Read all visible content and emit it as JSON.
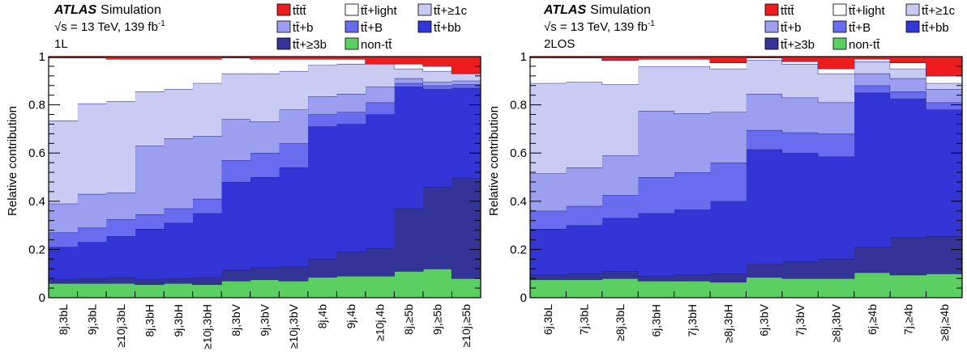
{
  "colors": {
    "tttt": "#ee1c1c",
    "ttlight": "#ffffff",
    "tt1c": "#cacbf2",
    "ttb": "#9c9ef0",
    "ttB": "#6a6cf0",
    "ttbb": "#3435d6",
    "tt3b": "#343398",
    "nontt": "#5ccf62",
    "outline": "#1a1a80"
  },
  "legend": [
    {
      "key": "tttt",
      "label": "tt̄tt̄"
    },
    {
      "key": "ttlight",
      "label": "tt̄+light"
    },
    {
      "key": "tt1c",
      "label": "tt̄+≥1c"
    },
    {
      "key": "ttb",
      "label": "tt̄+b"
    },
    {
      "key": "ttB",
      "label": "tt̄+B"
    },
    {
      "key": "ttbb",
      "label": "tt̄+bb"
    },
    {
      "key": "tt3b",
      "label": "tt̄+≥3b"
    },
    {
      "key": "nontt",
      "label": "non-tt̄"
    }
  ],
  "chart_data": [
    {
      "type": "bar",
      "stacked": true,
      "atlas_label": "ATLAS",
      "atlas_sub": "Simulation",
      "energy_label": "√s = 13 TeV, 139 fb",
      "energy_sup": "-1",
      "channel": "1L",
      "ylabel": "Relative contribution",
      "ylim": [
        0,
        1
      ],
      "yticks": [
        "0",
        "0.2",
        "0.4",
        "0.6",
        "0.8",
        "1"
      ],
      "categories": [
        "8j,3bL",
        "9j,3bL",
        "≥10j,3bL",
        "8j,3bH",
        "9j,3bH",
        "≥10j,3bH",
        "8j,3bV",
        "9j,3bV",
        "≥10j,3bV",
        "8j,4b",
        "9j,4b",
        "≥10j,4b",
        "8j,≥5b",
        "9j,≥5b",
        "≥10j,≥5b"
      ],
      "series": [
        {
          "key": "nontt",
          "name": "non-tt̄",
          "values": [
            0.06,
            0.06,
            0.06,
            0.055,
            0.06,
            0.055,
            0.07,
            0.075,
            0.07,
            0.085,
            0.09,
            0.09,
            0.11,
            0.12,
            0.08
          ]
        },
        {
          "key": "tt3b",
          "name": "tt̄+≥3b",
          "values": [
            0.015,
            0.02,
            0.025,
            0.02,
            0.02,
            0.03,
            0.045,
            0.05,
            0.06,
            0.075,
            0.1,
            0.115,
            0.26,
            0.34,
            0.415
          ]
        },
        {
          "key": "ttbb",
          "name": "tt̄+bb",
          "values": [
            0.135,
            0.15,
            0.17,
            0.21,
            0.23,
            0.265,
            0.365,
            0.375,
            0.41,
            0.55,
            0.53,
            0.555,
            0.505,
            0.405,
            0.375
          ]
        },
        {
          "key": "ttB",
          "name": "tt̄+B",
          "values": [
            0.06,
            0.06,
            0.07,
            0.06,
            0.06,
            0.06,
            0.09,
            0.1,
            0.1,
            0.05,
            0.05,
            0.05,
            0.015,
            0.015,
            0.015
          ]
        },
        {
          "key": "ttb",
          "name": "tt̄+b",
          "values": [
            0.12,
            0.14,
            0.11,
            0.285,
            0.29,
            0.26,
            0.17,
            0.13,
            0.14,
            0.075,
            0.075,
            0.065,
            0.02,
            0.015,
            0.015
          ]
        },
        {
          "key": "tt1c",
          "name": "tt̄+≥1c",
          "values": [
            0.345,
            0.375,
            0.38,
            0.225,
            0.205,
            0.22,
            0.19,
            0.2,
            0.16,
            0.13,
            0.125,
            0.095,
            0.04,
            0.045,
            0.03
          ]
        },
        {
          "key": "ttlight",
          "name": "tt̄+light",
          "values": [
            0.26,
            0.19,
            0.175,
            0.135,
            0.125,
            0.1,
            0.065,
            0.06,
            0.05,
            0.025,
            0.02,
            0.0,
            0.02,
            0.02,
            0.0
          ]
        },
        {
          "key": "tttt",
          "name": "tt̄tt̄",
          "values": [
            0.005,
            0.005,
            0.01,
            0.01,
            0.01,
            0.01,
            0.005,
            0.01,
            0.01,
            0.01,
            0.01,
            0.03,
            0.03,
            0.04,
            0.07
          ]
        }
      ]
    },
    {
      "type": "bar",
      "stacked": true,
      "atlas_label": "ATLAS",
      "atlas_sub": "Simulation",
      "energy_label": "√s = 13 TeV, 139 fb",
      "energy_sup": "-1",
      "channel": "2LOS",
      "ylabel": "Relative contribution",
      "ylim": [
        0,
        1
      ],
      "yticks": [
        "0",
        "0.2",
        "0.4",
        "0.6",
        "0.8",
        "1"
      ],
      "categories": [
        "6j,3bL",
        "7j,3bL",
        "≥8j,3bL",
        "6j,3bH",
        "7j,3bH",
        "≥8j,3bH",
        "6j,3bV",
        "7j,3bV",
        "≥8j,3bV",
        "6j,≥4b",
        "7j,≥4b",
        "≥8j,≥4b"
      ],
      "series": [
        {
          "key": "nontt",
          "name": "non-tt̄",
          "values": [
            0.075,
            0.075,
            0.08,
            0.07,
            0.07,
            0.065,
            0.085,
            0.08,
            0.08,
            0.105,
            0.095,
            0.1
          ]
        },
        {
          "key": "tt3b",
          "name": "tt̄+≥3b",
          "values": [
            0.02,
            0.025,
            0.03,
            0.02,
            0.025,
            0.035,
            0.055,
            0.07,
            0.08,
            0.105,
            0.155,
            0.155
          ]
        },
        {
          "key": "ttbb",
          "name": "tt̄+bb",
          "values": [
            0.19,
            0.2,
            0.22,
            0.26,
            0.27,
            0.3,
            0.475,
            0.45,
            0.425,
            0.64,
            0.575,
            0.525
          ]
        },
        {
          "key": "ttB",
          "name": "tt̄+B",
          "values": [
            0.075,
            0.08,
            0.095,
            0.15,
            0.155,
            0.16,
            0.08,
            0.085,
            0.095,
            0.03,
            0.03,
            0.03
          ]
        },
        {
          "key": "ttb",
          "name": "tt̄+b",
          "values": [
            0.155,
            0.16,
            0.165,
            0.275,
            0.245,
            0.21,
            0.15,
            0.145,
            0.13,
            0.05,
            0.055,
            0.055
          ]
        },
        {
          "key": "tt1c",
          "name": "tt̄+≥1c",
          "values": [
            0.375,
            0.355,
            0.295,
            0.185,
            0.195,
            0.18,
            0.14,
            0.14,
            0.12,
            0.05,
            0.04,
            0.025
          ]
        },
        {
          "key": "ttlight",
          "name": "tt̄+light",
          "values": [
            0.105,
            0.1,
            0.1,
            0.03,
            0.03,
            0.025,
            0.01,
            0.01,
            0.02,
            0.01,
            0.025,
            0.03
          ]
        },
        {
          "key": "tttt",
          "name": "tt̄tt̄",
          "values": [
            0.005,
            0.005,
            0.015,
            0.01,
            0.01,
            0.025,
            0.005,
            0.02,
            0.05,
            0.01,
            0.025,
            0.08
          ]
        }
      ]
    }
  ]
}
